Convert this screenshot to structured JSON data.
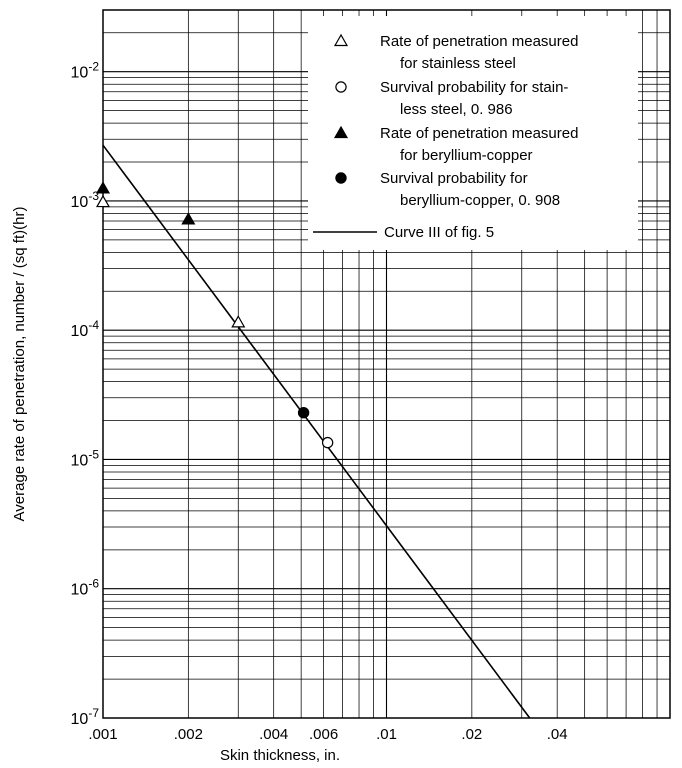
{
  "chart_data": {
    "type": "scatter",
    "title": "",
    "xlabel": "Skin thickness, in.",
    "ylabel": "Average rate of penetration, number / (sq ft)(hr)",
    "x_scale": "log",
    "y_scale": "log",
    "xlim": [
      0.001,
      0.1
    ],
    "ylim": [
      1e-07,
      0.03
    ],
    "grid": true,
    "legend_position": "top-right",
    "x_tick_labels": [
      {
        "value": 0.001,
        "label": ".001"
      },
      {
        "value": 0.002,
        "label": ".002"
      },
      {
        "value": 0.004,
        "label": ".004"
      },
      {
        "value": 0.006,
        "label": ".006"
      },
      {
        "value": 0.01,
        "label": ".01"
      },
      {
        "value": 0.02,
        "label": ".02"
      },
      {
        "value": 0.04,
        "label": ".04"
      }
    ],
    "y_tick_labels": [
      {
        "value": 1e-07,
        "base": "10",
        "exp": "-7"
      },
      {
        "value": 1e-06,
        "base": "10",
        "exp": "-6"
      },
      {
        "value": 1e-05,
        "base": "10",
        "exp": "-5"
      },
      {
        "value": 0.0001,
        "base": "10",
        "exp": "-4"
      },
      {
        "value": 0.001,
        "base": "10",
        "exp": "-3"
      },
      {
        "value": 0.01,
        "base": "10",
        "exp": "-2"
      }
    ],
    "series": [
      {
        "name": "Rate of penetration measured for stainless steel",
        "legend_lines": [
          "Rate of penetration measured",
          "for stainless steel"
        ],
        "marker": "open-triangle",
        "points": [
          {
            "x": 0.001,
            "y": 0.00098
          },
          {
            "x": 0.003,
            "y": 0.000115
          }
        ]
      },
      {
        "name": "Survival probability for stainless steel, 0.986",
        "legend_lines": [
          "Survival probability for stain-",
          "less steel, 0. 986"
        ],
        "marker": "open-circle",
        "points": [
          {
            "x": 0.0062,
            "y": 1.35e-05
          }
        ]
      },
      {
        "name": "Rate of penetration measured for beryllium-copper",
        "legend_lines": [
          "Rate of penetration measured",
          "for beryllium-copper"
        ],
        "marker": "filled-triangle",
        "points": [
          {
            "x": 0.001,
            "y": 0.00125
          },
          {
            "x": 0.002,
            "y": 0.00072
          }
        ]
      },
      {
        "name": "Survival probability for beryllium-copper, 0.908",
        "legend_lines": [
          "Survival probability for",
          "beryllium-copper, 0. 908"
        ],
        "marker": "filled-circle",
        "points": [
          {
            "x": 0.0051,
            "y": 2.3e-05
          }
        ]
      },
      {
        "name": "Curve III of fig. 5",
        "legend_lines": [
          "Curve III of fig. 5"
        ],
        "marker": "line",
        "points": [
          {
            "x": 0.001,
            "y": 0.0027
          },
          {
            "x": 0.032,
            "y": 1e-07
          }
        ]
      }
    ]
  }
}
